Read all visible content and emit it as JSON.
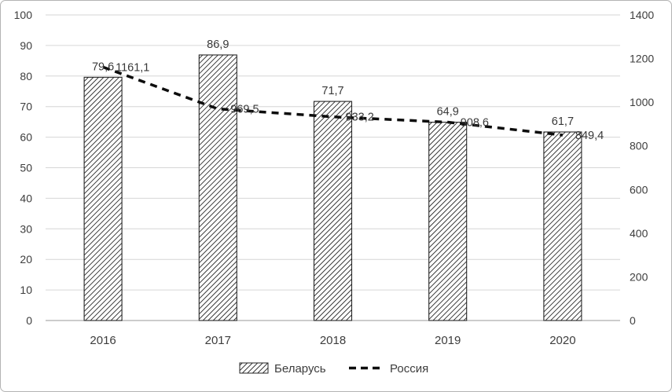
{
  "chart_data": {
    "type": "bar+line",
    "title": "",
    "categories": [
      "2016",
      "2017",
      "2018",
      "2019",
      "2020"
    ],
    "series": [
      {
        "name": "Беларусь",
        "type": "bar",
        "axis": "left",
        "values": [
          79.6,
          86.9,
          71.7,
          64.9,
          61.7
        ],
        "labels": [
          "79,6",
          "86,9",
          "71,7",
          "64,9",
          "61,7"
        ],
        "marker": "hatched-box"
      },
      {
        "name": "Россия",
        "type": "line",
        "axis": "right",
        "values": [
          1161.1,
          969.5,
          933.2,
          908.6,
          849.4
        ],
        "labels": [
          "1161,1",
          "969,5",
          "933,2",
          "908,6",
          "849,4"
        ],
        "marker": "dashed-line"
      }
    ],
    "left_axis": {
      "min": 0,
      "max": 100,
      "step": 10,
      "ticks": [
        "0",
        "10",
        "20",
        "30",
        "40",
        "50",
        "60",
        "70",
        "80",
        "90",
        "100"
      ]
    },
    "right_axis": {
      "min": 0,
      "max": 1400,
      "step": 200,
      "ticks": [
        "0",
        "200",
        "400",
        "600",
        "800",
        "1000",
        "1200",
        "1400"
      ]
    },
    "grid": true,
    "legend_position": "bottom",
    "colors": {
      "bar_hatch": "#1a1a1a",
      "bar_outline": "#262626",
      "line": "#0d0d0d",
      "gridline": "#d6d6d6",
      "axis_line": "#9a9a9a",
      "tick_text": "#3d3d3d",
      "label_text": "#383838",
      "background": "#ffffff"
    }
  }
}
